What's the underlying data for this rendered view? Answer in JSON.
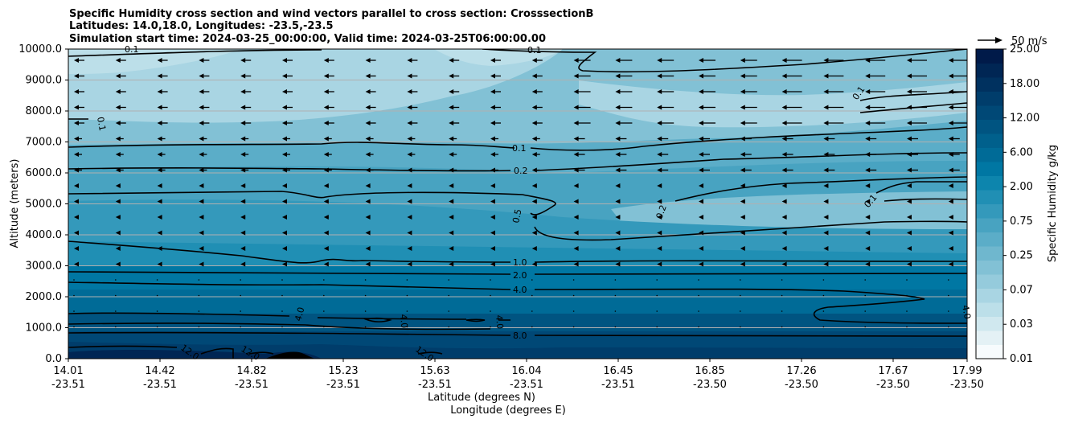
{
  "chart_data": {
    "type": "heatmap",
    "title_lines": [
      "Specific Humidity cross section and wind vectors parallel to cross section: CrosssectionB",
      "Latitudes: 14.0,18.0, Longitudes: -23.5,-23.5",
      "Simulation start time: 2024-03-25_00:00:00, Valid time: 2024-03-25T06:00:00.00"
    ],
    "ylabel": "Altitude (meters)",
    "xlabel_lat": "Latitude (degrees N)",
    "xlabel_lon": "Longitude (degrees E)",
    "ylim": [
      0,
      10000
    ],
    "yticks": [
      "0.0",
      "1000.0",
      "2000.0",
      "3000.0",
      "4000.0",
      "5000.0",
      "6000.0",
      "7000.0",
      "8000.0",
      "9000.0",
      "10000.0"
    ],
    "yticks_values": [
      0,
      1000,
      2000,
      3000,
      4000,
      5000,
      6000,
      7000,
      8000,
      9000,
      10000
    ],
    "xticks_lat": [
      "14.01",
      "14.42",
      "14.82",
      "15.23",
      "15.63",
      "16.04",
      "16.45",
      "16.85",
      "17.26",
      "17.67",
      "17.99"
    ],
    "xticks_lon": [
      "-23.51",
      "-23.51",
      "-23.51",
      "-23.51",
      "-23.51",
      "-23.51",
      "-23.51",
      "-23.50",
      "-23.50",
      "-23.50",
      "-23.50"
    ],
    "grid_horizontal": true,
    "colorbar": {
      "label": "Specific Humidity g/kg",
      "levels": [
        0.01,
        0.02,
        0.03,
        0.05,
        0.07,
        0.1,
        0.15,
        0.25,
        0.35,
        0.5,
        0.75,
        1.0,
        1.5,
        2.0,
        3.0,
        4.0,
        6.0,
        8.0,
        12.0,
        15.0,
        18.0,
        22.0,
        25.0
      ],
      "tick_labels": [
        "0.01",
        "0.03",
        "0.07",
        "0.25",
        "0.75",
        "2.00",
        "6.00",
        "12.00",
        "18.00",
        "25.00"
      ],
      "colors": [
        "#f7fbfd",
        "#e4f1f5",
        "#d0e8ef",
        "#bcdfe9",
        "#a9d5e3",
        "#95cbdc",
        "#82c1d5",
        "#6fb7ce",
        "#5badc8",
        "#48a3c1",
        "#3499bb",
        "#208fb4",
        "#0d85ad",
        "#0077a3",
        "#006b97",
        "#00608c",
        "#005481",
        "#004876",
        "#003d6b",
        "#00315f",
        "#002654",
        "#001a49"
      ]
    },
    "contour_labels": [
      "0.1",
      "0.1",
      "0.1",
      "0.2",
      "0.5",
      "1.0",
      "2.0",
      "4.0",
      "8.0",
      "12.0",
      "0.1",
      "0.1",
      "0.2",
      "4.0",
      "4.0",
      "4.0",
      "12.0",
      "12.0",
      "12.0",
      "4.0",
      "0.1"
    ],
    "wind_key_label": "50 m/s"
  }
}
